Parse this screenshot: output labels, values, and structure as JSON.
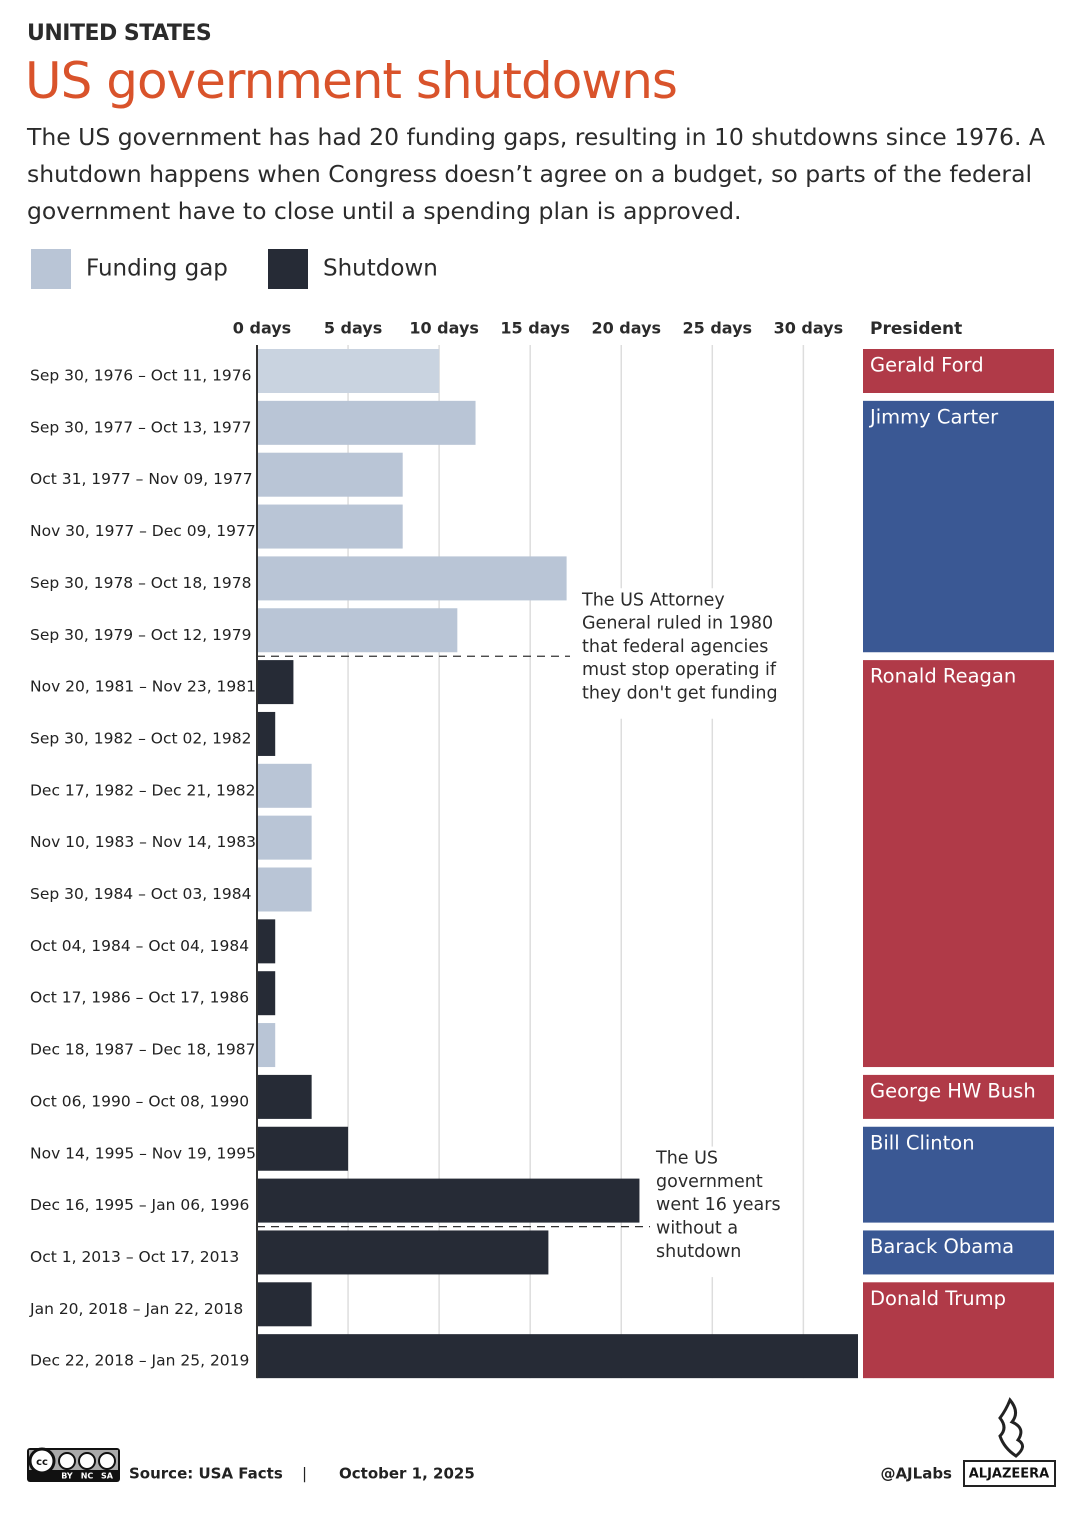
{
  "header": {
    "kicker": "UNITED STATES",
    "title": "US government shutdowns",
    "subtitle": "The US government has had 20 funding gaps, resulting in 10 shutdowns since 1976. A shutdown happens when Congress doesn’t agree on a budget, so parts of the federal government have to close until a spending plan is approved."
  },
  "chart_data": {
    "type": "bar",
    "orientation": "horizontal",
    "categories": [
      "Sep 30, 1976 – Oct 11, 1976",
      "Sep 30, 1977 – Oct 13, 1977",
      "Oct 31, 1977 – Nov 09, 1977",
      "Nov 30, 1977 – Dec 09, 1977",
      "Sep 30, 1978 – Oct 18, 1978",
      "Sep 30, 1979 – Oct 12, 1979",
      "Nov 20, 1981 – Nov 23, 1981",
      "Sep 30, 1982 – Oct 02, 1982",
      "Dec 17, 1982 – Dec 21, 1982",
      "Nov 10, 1983 – Nov 14, 1983",
      "Sep 30, 1984 – Oct 03, 1984",
      "Oct 04, 1984 – Oct 04, 1984",
      "Oct 17, 1986 – Oct 17, 1986",
      "Dec 18, 1987 – Dec 18, 1987",
      "Oct 06, 1990 – Oct 08, 1990",
      "Nov 14, 1995 – Nov 19, 1995",
      "Dec 16, 1995 – Jan 06, 1996",
      "Oct 1, 2013 – Oct 17, 2013",
      "Jan 20, 2018 – Jan 22, 2018",
      "Dec 22, 2018 – Jan 25, 2019"
    ],
    "series": [
      {
        "name": "Funding gap",
        "color": "#b9c5d6",
        "values": [
          10,
          12,
          8,
          8,
          17,
          11,
          null,
          null,
          3,
          3,
          3,
          null,
          null,
          1,
          null,
          null,
          null,
          null,
          null,
          null
        ]
      },
      {
        "name": "Shutdown",
        "color": "#262b36",
        "values": [
          null,
          null,
          null,
          null,
          null,
          null,
          2,
          1,
          null,
          null,
          null,
          1,
          1,
          null,
          3,
          5,
          21,
          16,
          3,
          33
        ]
      }
    ],
    "xlim": [
      0,
      33
    ],
    "xticks": [
      {
        "value": 0,
        "label": "0 days"
      },
      {
        "value": 5,
        "label": "5 days"
      },
      {
        "value": 10,
        "label": "10 days"
      },
      {
        "value": 15,
        "label": "15 days"
      },
      {
        "value": 20,
        "label": "20 days"
      },
      {
        "value": 25,
        "label": "25 days"
      },
      {
        "value": 30,
        "label": "30 days"
      }
    ],
    "grid": true,
    "president_label": "President",
    "presidents": [
      {
        "name": "Gerald Ford",
        "color": "#b03a48",
        "rows": 1
      },
      {
        "name": "Jimmy Carter",
        "color": "#3a5894",
        "rows": 5
      },
      {
        "name": "Ronald Reagan",
        "color": "#b03a48",
        "rows": 8
      },
      {
        "name": "George HW Bush",
        "color": "#b03a48",
        "rows": 1
      },
      {
        "name": "Bill Clinton",
        "color": "#3a5894",
        "rows": 2
      },
      {
        "name": "Barack Obama",
        "color": "#3a5894",
        "rows": 1
      },
      {
        "name": "Donald Trump",
        "color": "#b03a48",
        "rows": 2
      }
    ],
    "annotations": [
      {
        "after_row": 5,
        "lines": [
          "The US Attorney",
          "General ruled in 1980",
          "that federal agencies",
          "must stop operating if",
          "they don't get funding"
        ]
      },
      {
        "after_row": 16,
        "lines": [
          "The US",
          "government",
          "went 16 years",
          "without a",
          "shutdown"
        ]
      }
    ]
  },
  "footer": {
    "license": [
      "BY",
      "NC",
      "SA"
    ],
    "source": "Source:  USA Facts",
    "separator": "|",
    "date": "October 1, 2025",
    "handle": "@AJLabs",
    "brand": "ALJAZEERA"
  }
}
